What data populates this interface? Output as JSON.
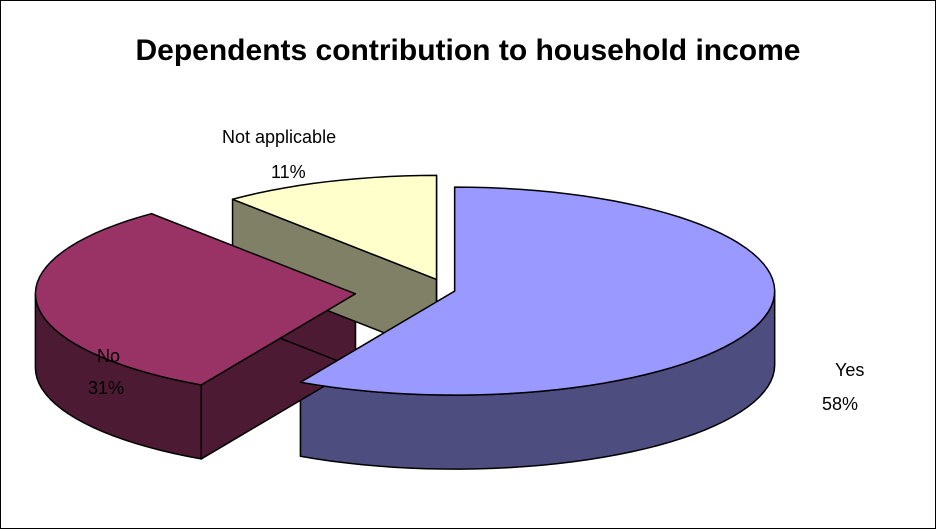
{
  "chart_data": {
    "type": "pie",
    "style": "3d-exploded",
    "title": "Dependents contribution to household income",
    "slices": [
      {
        "label": "Yes",
        "value": 58,
        "value_label": "58%",
        "top_color": "#9999FF",
        "side_color": "#4D4D80"
      },
      {
        "label": "No",
        "value": 31,
        "value_label": "31%",
        "top_color": "#993366",
        "side_color": "#4D1A33"
      },
      {
        "label": "Not applicable",
        "value": 11,
        "value_label": "11%",
        "top_color": "#FFFFCC",
        "side_color": "#808066"
      }
    ]
  }
}
